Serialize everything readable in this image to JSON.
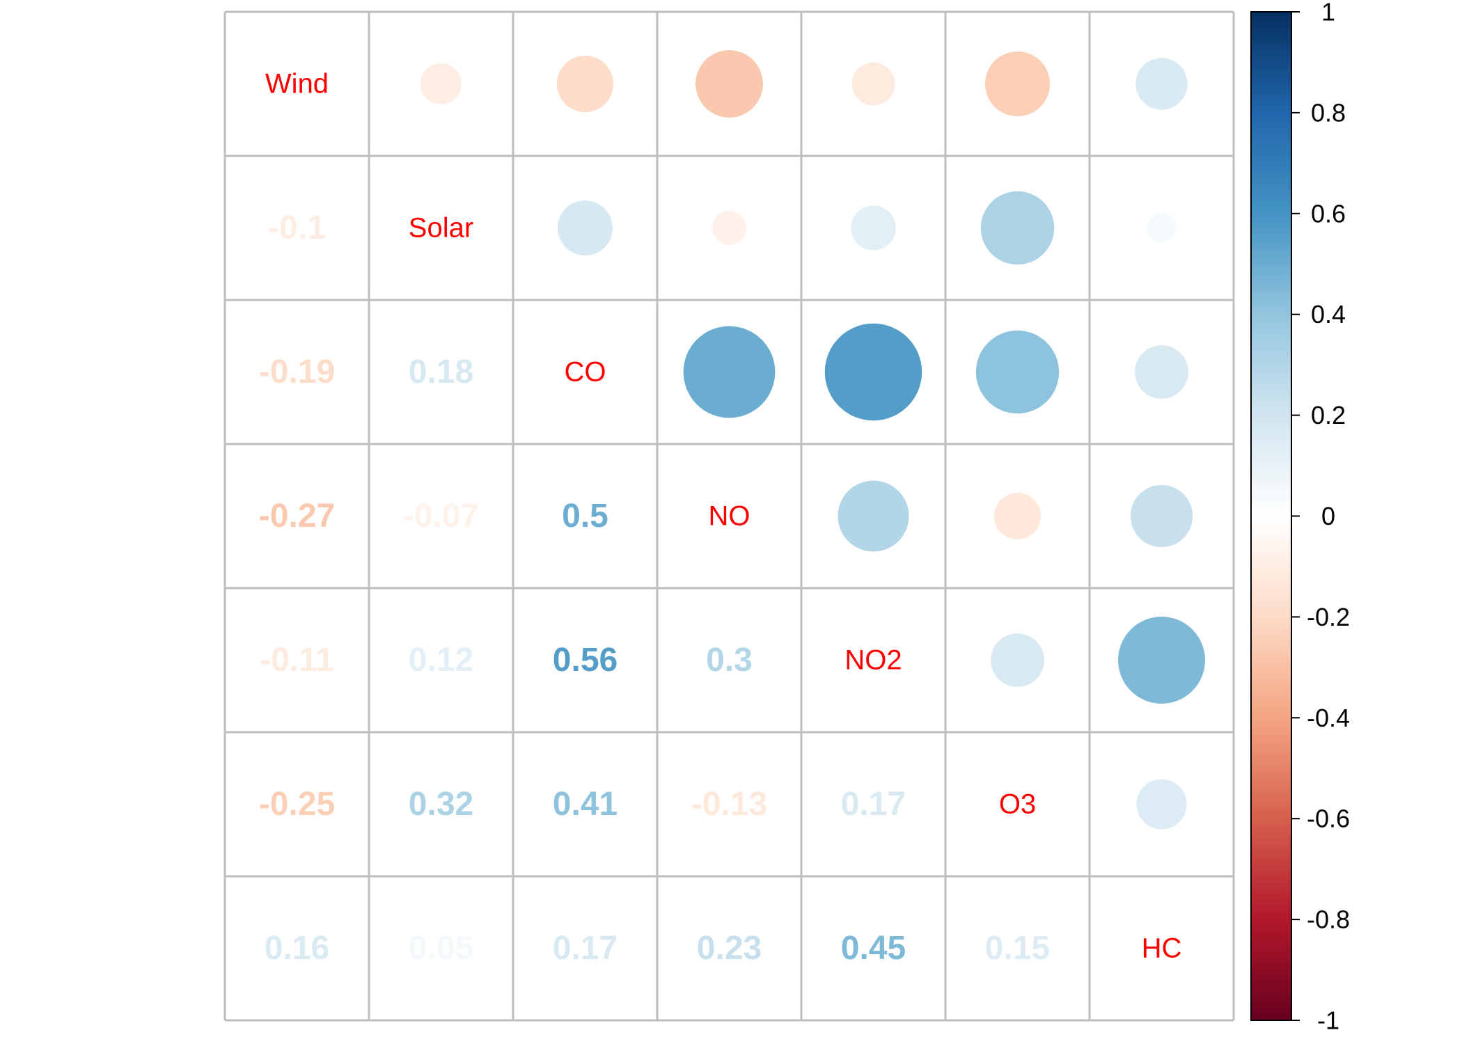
{
  "chart_data": {
    "type": "heatmap",
    "variables": [
      "Wind",
      "Solar",
      "CO",
      "NO",
      "NO2",
      "O3",
      "HC"
    ],
    "matrix": [
      [
        1,
        -0.1,
        -0.19,
        -0.27,
        -0.11,
        -0.25,
        0.16
      ],
      [
        -0.1,
        1,
        0.18,
        -0.07,
        0.12,
        0.32,
        0.05
      ],
      [
        -0.19,
        0.18,
        1,
        0.5,
        0.56,
        0.41,
        0.17
      ],
      [
        -0.27,
        -0.07,
        0.5,
        1,
        0.3,
        -0.13,
        0.23
      ],
      [
        -0.11,
        0.12,
        0.56,
        0.3,
        1,
        0.17,
        0.45
      ],
      [
        -0.25,
        0.32,
        0.41,
        -0.13,
        0.17,
        1,
        0.15
      ],
      [
        0.16,
        0.05,
        0.17,
        0.23,
        0.45,
        0.15,
        1
      ]
    ],
    "lower_labels": [
      [
        null,
        null,
        null,
        null,
        null,
        null,
        null
      ],
      [
        "-0.1",
        null,
        null,
        null,
        null,
        null,
        null
      ],
      [
        "-0.19",
        "0.18",
        null,
        null,
        null,
        null,
        null
      ],
      [
        "-0.27",
        "-0.07",
        "0.5",
        null,
        null,
        null,
        null
      ],
      [
        "-0.11",
        "0.12",
        "0.56",
        "0.3",
        null,
        null,
        null
      ],
      [
        "-0.25",
        "0.32",
        "0.41",
        "-0.13",
        "0.17",
        null,
        null
      ],
      [
        "0.16",
        "0.05",
        "0.17",
        "0.23",
        "0.45",
        "0.15",
        null
      ]
    ],
    "upper_method": "circle",
    "lower_method": "number",
    "diagonal": "labels",
    "color_range": [
      -1,
      1
    ],
    "colorbar": {
      "ticks": [
        "1",
        "0.8",
        "0.6",
        "0.4",
        "0.2",
        "0",
        "-0.2",
        "-0.4",
        "-0.6",
        "-0.8",
        "-1"
      ],
      "tick_values": [
        1,
        0.8,
        0.6,
        0.4,
        0.2,
        0,
        -0.2,
        -0.4,
        -0.6,
        -0.8,
        -1
      ],
      "placement": "right"
    },
    "colors": {
      "label": "#ff0000",
      "grid": "#bebebe",
      "palette": [
        "#67001F",
        "#B2182B",
        "#D6604D",
        "#F4A582",
        "#FDDBC7",
        "#FFFFFF",
        "#D1E5F0",
        "#92C5DE",
        "#4393C3",
        "#2166AC",
        "#053061"
      ]
    }
  }
}
